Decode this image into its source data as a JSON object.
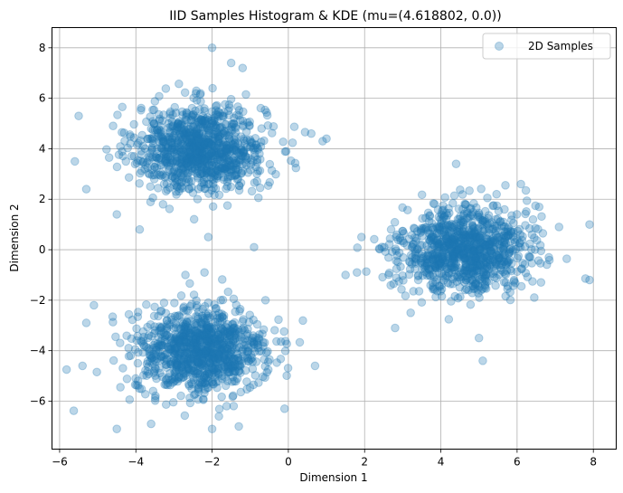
{
  "chart_data": {
    "type": "scatter",
    "title": "IID Samples Histogram & KDE (mu=(4.618802, 0.0))",
    "xlabel": "Dimension 1",
    "ylabel": "Dimension 2",
    "xlim": [
      -6.2,
      8.6
    ],
    "ylim": [
      -7.9,
      8.8
    ],
    "xticks": [
      -6,
      -4,
      -2,
      0,
      2,
      4,
      6,
      8
    ],
    "yticks": [
      -6,
      -4,
      -2,
      0,
      2,
      4,
      6,
      8
    ],
    "xtick_labels": [
      "−6",
      "−4",
      "−2",
      "0",
      "2",
      "4",
      "6",
      "8"
    ],
    "ytick_labels": [
      "−6",
      "−4",
      "−2",
      "0",
      "2",
      "4",
      "6",
      "8"
    ],
    "grid": true,
    "legend": {
      "position": "top-right",
      "entries": [
        "2D Samples"
      ]
    },
    "series": [
      {
        "name": "2D Samples",
        "color": "#1f77b4",
        "alpha": 0.3,
        "clusters": [
          {
            "center": [
              -2.3,
              4.0
            ],
            "std": 0.85,
            "count": 1000
          },
          {
            "center": [
              -2.3,
              -4.0
            ],
            "std": 0.85,
            "count": 1000
          },
          {
            "center": [
              4.62,
              0.0
            ],
            "std": 0.85,
            "count": 1000
          }
        ],
        "points": [
          [
            -2.0,
            8.0
          ],
          [
            -1.5,
            7.4
          ],
          [
            -1.2,
            7.2
          ],
          [
            -5.5,
            5.3
          ],
          [
            -5.6,
            3.5
          ],
          [
            -5.3,
            2.4
          ],
          [
            1.0,
            4.4
          ],
          [
            0.9,
            4.3
          ],
          [
            0.6,
            4.6
          ],
          [
            -3.9,
            0.8
          ],
          [
            -2.1,
            0.5
          ],
          [
            -0.9,
            0.1
          ],
          [
            -4.5,
            1.4
          ],
          [
            7.9,
            1.0
          ],
          [
            7.9,
            -1.2
          ],
          [
            1.5,
            -1.0
          ],
          [
            2.8,
            -3.1
          ],
          [
            4.4,
            3.4
          ],
          [
            5.0,
            -3.5
          ],
          [
            5.1,
            -4.4
          ],
          [
            6.1,
            2.6
          ],
          [
            7.1,
            0.9
          ],
          [
            1.8,
            -0.9
          ],
          [
            -5.4,
            -4.6
          ],
          [
            -5.3,
            -2.9
          ],
          [
            -4.5,
            -7.1
          ],
          [
            -0.1,
            -6.3
          ],
          [
            0.7,
            -4.6
          ],
          [
            -3.6,
            -6.9
          ],
          [
            -2.0,
            -7.1
          ],
          [
            -1.3,
            -7.0
          ],
          [
            -0.6,
            -2.0
          ],
          [
            -5.1,
            -2.2
          ],
          [
            -2.7,
            -1.0
          ],
          [
            -2.2,
            -0.9
          ]
        ]
      }
    ]
  }
}
